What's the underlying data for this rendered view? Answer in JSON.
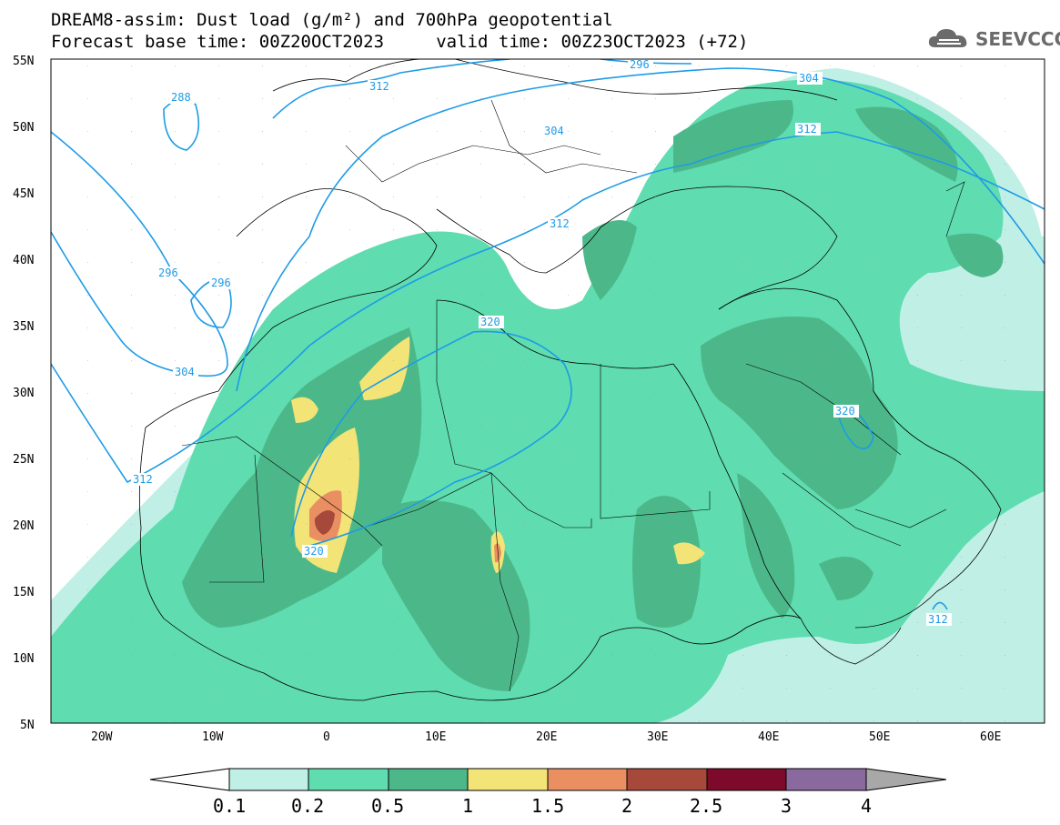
{
  "header": {
    "line1": "DREAM8-assim: Dust load (g/m²) and 700hPa geopotential",
    "line2": "Forecast base time: 00Z20OCT2023     valid time: 00Z23OCT2023 (+72)"
  },
  "logo": {
    "text": "SEEVCCC",
    "icon": "cloud-icon"
  },
  "axes": {
    "lon_labels": [
      "20W",
      "10W",
      "0",
      "10E",
      "20E",
      "30E",
      "40E",
      "50E",
      "60E"
    ],
    "lat_labels": [
      "55N",
      "50N",
      "45N",
      "40N",
      "35N",
      "30N",
      "25N",
      "20N",
      "15N",
      "10N",
      "5N"
    ]
  },
  "contours": {
    "labels": [
      "288",
      "296",
      "296",
      "296",
      "304",
      "304",
      "304",
      "312",
      "312",
      "312",
      "312",
      "320",
      "320",
      "320",
      "312"
    ]
  },
  "colorbar": {
    "labels": [
      "0.1",
      "0.2",
      "0.5",
      "1",
      "1.5",
      "2",
      "2.5",
      "3",
      "4"
    ],
    "colors": [
      "#c0efe6",
      "#5fdcb0",
      "#4cb88a",
      "#f2e477",
      "#e98f62",
      "#a6483a",
      "#7d0a2a",
      "#8a6a9e",
      "#a8a8a8"
    ]
  },
  "palette": {
    "land_bg": "#ffffff",
    "dust_low": "#c0efe6",
    "dust_mid": "#5fdcb0",
    "dust_high": "#4cb88a",
    "dust_yellow": "#f2e477",
    "dust_orange": "#e98f62",
    "dust_red": "#a6483a",
    "contour": "#1e9be6",
    "border": "#000000"
  }
}
